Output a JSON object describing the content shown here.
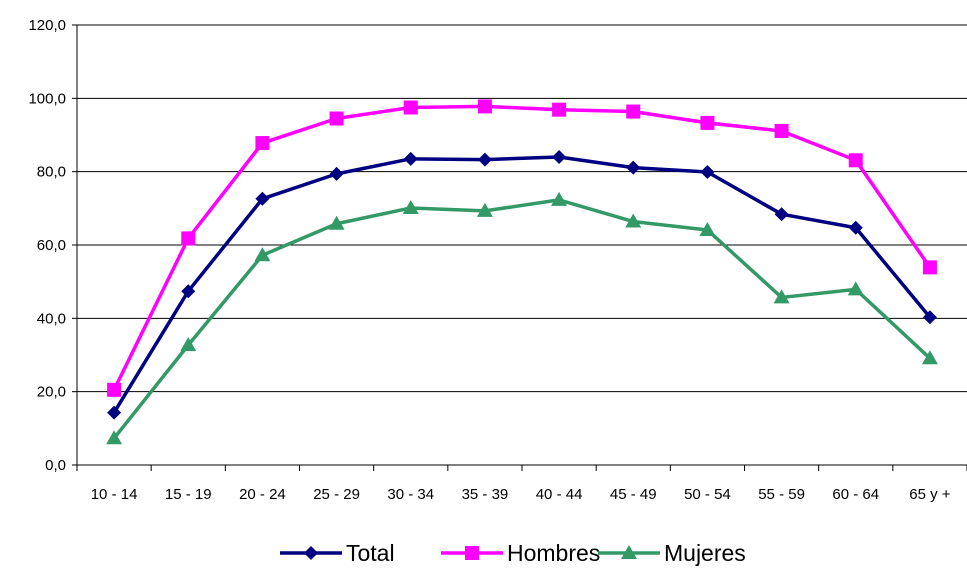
{
  "chart_data": {
    "type": "line",
    "title": "",
    "xlabel": "",
    "ylabel": "",
    "categories": [
      "10 - 14",
      "15 - 19",
      "20 - 24",
      "25 - 29",
      "30 - 34",
      "35 - 39",
      "40 - 44",
      "45 - 49",
      "50 - 54",
      "55 - 59",
      "60 - 64",
      "65 y +"
    ],
    "ylim": [
      0,
      120
    ],
    "yticks": [
      0,
      20,
      40,
      60,
      80,
      100,
      120
    ],
    "ytick_labels": [
      "0,0",
      "20,0",
      "40,0",
      "60,0",
      "80,0",
      "100,0",
      "120,0"
    ],
    "grid": true,
    "legend_position": "bottom",
    "series": [
      {
        "name": "Total",
        "color": "#000080",
        "marker": "diamond",
        "values": [
          14.3,
          47.4,
          72.6,
          79.4,
          83.5,
          83.3,
          84.0,
          81.1,
          79.9,
          68.4,
          64.7,
          40.3
        ]
      },
      {
        "name": "Hombres",
        "color": "#FF00FF",
        "marker": "square",
        "values": [
          20.5,
          61.8,
          87.8,
          94.5,
          97.5,
          97.8,
          96.9,
          96.4,
          93.3,
          91.1,
          83.1,
          53.9
        ]
      },
      {
        "name": "Mujeres",
        "color": "#339966",
        "marker": "triangle",
        "values": [
          7.3,
          32.7,
          57.2,
          65.8,
          70.1,
          69.3,
          72.3,
          66.4,
          64.1,
          45.7,
          47.9,
          29.1
        ]
      }
    ]
  }
}
